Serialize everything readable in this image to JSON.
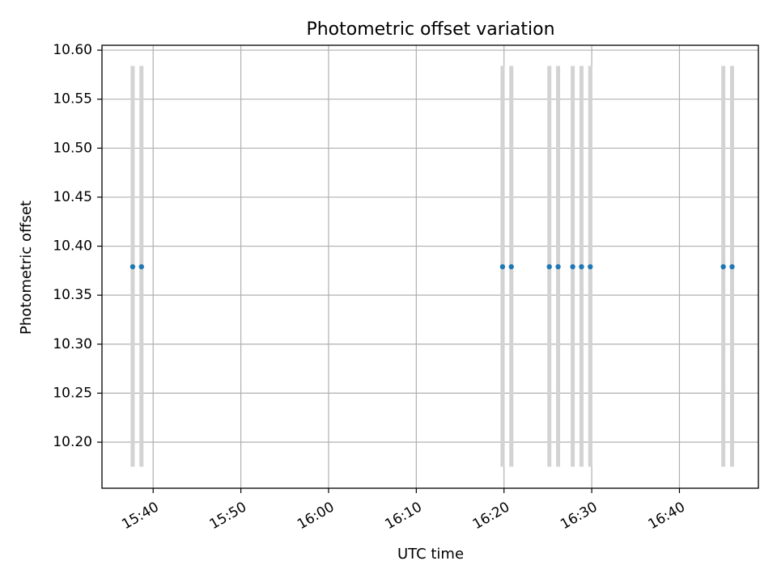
{
  "chart_data": {
    "type": "scatter",
    "title": "Photometric offset variation",
    "xlabel": "UTC time",
    "ylabel": "Photometric offset",
    "xlim": [
      "15:34:10",
      "16:49:00"
    ],
    "ylim": [
      10.153,
      10.605
    ],
    "x_ticks": [
      "15:40",
      "15:50",
      "16:00",
      "16:10",
      "16:20",
      "16:30",
      "16:40"
    ],
    "y_ticks": [
      "10.20",
      "10.25",
      "10.30",
      "10.35",
      "10.40",
      "10.45",
      "10.50",
      "10.55",
      "10.60"
    ],
    "grid": true,
    "error_bar_range": [
      10.175,
      10.584
    ],
    "marker_color": "#1f77b4",
    "error_bar_color": "#d3d3d3",
    "points": [
      {
        "time": "15:37:40",
        "value": 10.379
      },
      {
        "time": "15:38:40",
        "value": 10.379
      },
      {
        "time": "16:19:50",
        "value": 10.379
      },
      {
        "time": "16:20:50",
        "value": 10.379
      },
      {
        "time": "16:25:10",
        "value": 10.379
      },
      {
        "time": "16:26:10",
        "value": 10.379
      },
      {
        "time": "16:27:50",
        "value": 10.379
      },
      {
        "time": "16:28:50",
        "value": 10.379
      },
      {
        "time": "16:29:50",
        "value": 10.379
      },
      {
        "time": "16:45:00",
        "value": 10.379
      },
      {
        "time": "16:46:00",
        "value": 10.379
      }
    ]
  }
}
